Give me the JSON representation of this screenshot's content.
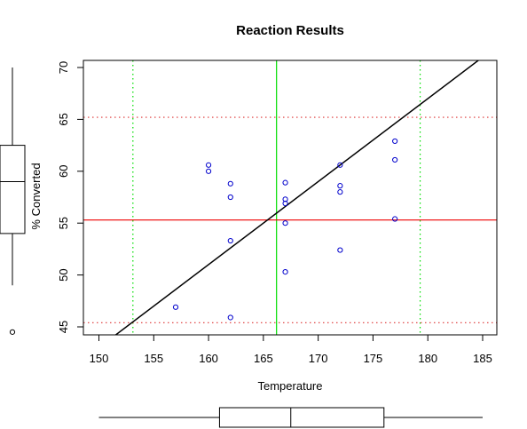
{
  "chart_data": {
    "type": "scatter",
    "title": "Reaction Results",
    "xlabel": "Temperature",
    "ylabel": "% Converted",
    "xlim": [
      150,
      185
    ],
    "ylim": [
      45,
      70
    ],
    "x_ticks": [
      "150",
      "155",
      "160",
      "165",
      "170",
      "175",
      "180",
      "185"
    ],
    "y_ticks": [
      "45",
      "50",
      "55",
      "60",
      "65",
      "70"
    ],
    "points": [
      {
        "x": 157,
        "y": 46.9
      },
      {
        "x": 160,
        "y": 60.6
      },
      {
        "x": 160,
        "y": 60.0
      },
      {
        "x": 162,
        "y": 58.8
      },
      {
        "x": 162,
        "y": 57.5
      },
      {
        "x": 162,
        "y": 53.3
      },
      {
        "x": 162,
        "y": 45.9
      },
      {
        "x": 167,
        "y": 58.9
      },
      {
        "x": 167,
        "y": 57.3
      },
      {
        "x": 167,
        "y": 56.9
      },
      {
        "x": 167,
        "y": 55.0
      },
      {
        "x": 167,
        "y": 50.3
      },
      {
        "x": 172,
        "y": 60.6
      },
      {
        "x": 172,
        "y": 58.6
      },
      {
        "x": 172,
        "y": 58.0
      },
      {
        "x": 172,
        "y": 52.4
      },
      {
        "x": 177,
        "y": 62.9
      },
      {
        "x": 177,
        "y": 61.1
      },
      {
        "x": 177,
        "y": 55.4
      }
    ],
    "point_color": "#0000cc",
    "fit_line": {
      "x1": 150.0,
      "y1": 43.0,
      "x2": 186.0,
      "y2": 71.8,
      "color": "#000000"
    },
    "mean_x": 166.2,
    "mean_y": 55.3,
    "mean_x_color": "#00dd00",
    "mean_y_color": "#ee0000",
    "sd_x_lines": [
      153.1,
      179.3
    ],
    "sd_y_lines": [
      45.4,
      65.2
    ],
    "sd_x_color": "#00dd00",
    "sd_y_color": "#dd3333",
    "x_boxplot": {
      "min": 150.0,
      "q1": 161.0,
      "median": 167.5,
      "q3": 176.0,
      "max": 185.0
    },
    "y_boxplot": {
      "min": 49.0,
      "q1": 54.0,
      "median": 59.0,
      "q3": 62.5,
      "max": 70.0,
      "outliers": [
        44.5
      ]
    },
    "grid": false
  }
}
